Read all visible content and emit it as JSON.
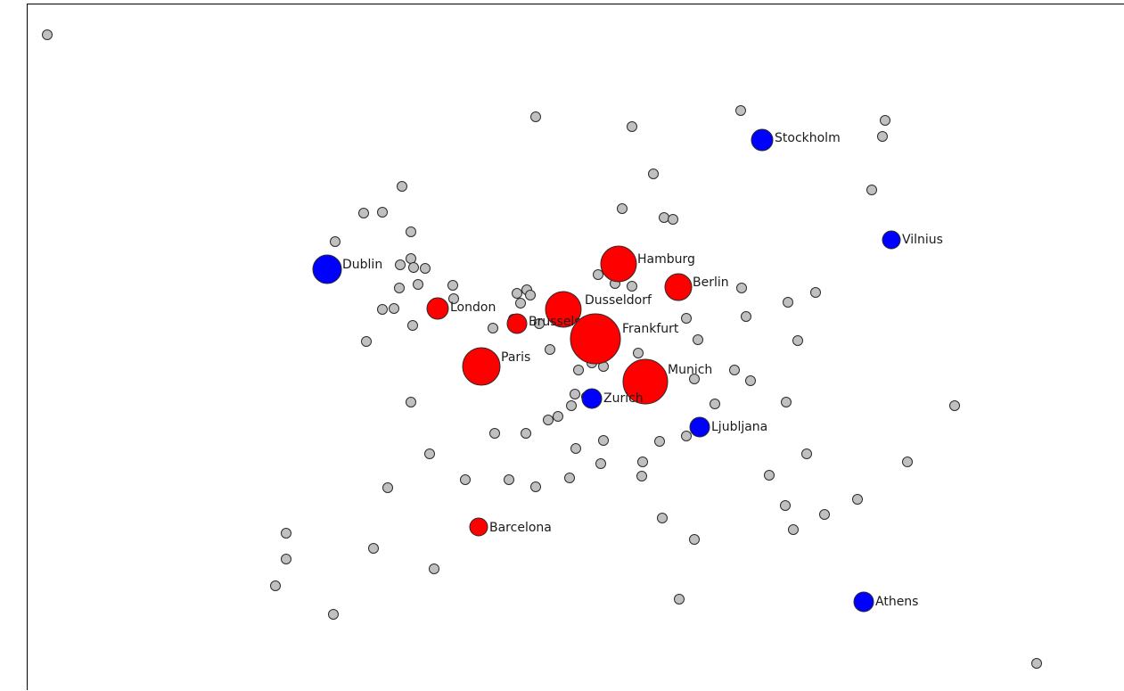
{
  "colors": {
    "major": "#ff0000",
    "hub": "#0000ff",
    "minor": "#c0c0c0",
    "stroke": "#2b2b2b"
  },
  "labeled_nodes": [
    {
      "name": "Hamburg",
      "kind": "major",
      "size": 3
    },
    {
      "name": "Berlin",
      "kind": "major",
      "size": 2
    },
    {
      "name": "Dusseldorf",
      "kind": "major",
      "size": 3
    },
    {
      "name": "London",
      "kind": "major",
      "size": 1
    },
    {
      "name": "Brussels",
      "kind": "major",
      "size": 1
    },
    {
      "name": "Frankfurt",
      "kind": "major",
      "size": 4
    },
    {
      "name": "Paris",
      "kind": "major",
      "size": 3
    },
    {
      "name": "Munich",
      "kind": "major",
      "size": 4
    },
    {
      "name": "Barcelona",
      "kind": "major",
      "size": 1
    },
    {
      "name": "Stockholm",
      "kind": "hub",
      "size": 1
    },
    {
      "name": "Vilnius",
      "kind": "hub",
      "size": 1
    },
    {
      "name": "Dublin",
      "kind": "hub",
      "size": 2
    },
    {
      "name": "Zurich",
      "kind": "hub",
      "size": 1
    },
    {
      "name": "Ljubljana",
      "kind": "hub",
      "size": 1
    },
    {
      "name": "Athens",
      "kind": "hub",
      "size": 1
    }
  ],
  "minor_node_count": 96
}
